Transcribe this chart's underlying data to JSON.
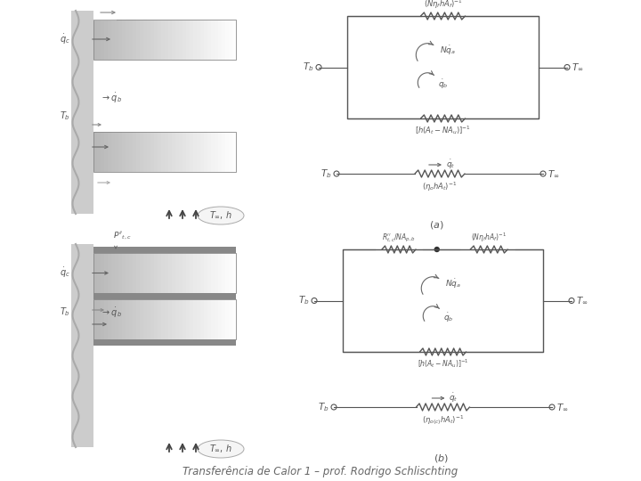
{
  "title": "Transferência de Calor 1 – prof. Rodrigo Schlischting",
  "bg_color": "#ffffff",
  "fig_width": 7.2,
  "fig_height": 5.4,
  "dpi": 100,
  "text_color": "#555555",
  "arrow_color": "#666666",
  "line_color": "#555555",
  "wall_fill": "#cccccc",
  "fin_color": "#d8d8d8",
  "dark_bar_color": "#888888"
}
